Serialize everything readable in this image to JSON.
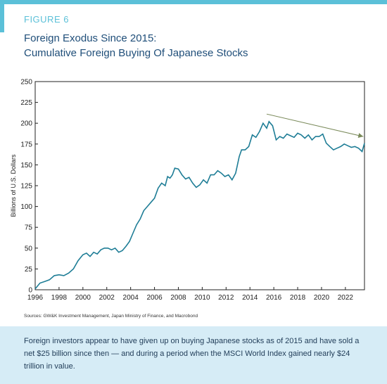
{
  "colors": {
    "accent": "#5bc0d8",
    "caption_bg": "#d6ecf6",
    "line": "#1e7d96",
    "arrow": "#7a8a5a"
  },
  "figure_label": "FIGURE 6",
  "title_line1": "Foreign Exodus Since 2015:",
  "title_line2": "Cumulative Foreign Buying Of Japanese Stocks",
  "source": "Sources: GW&K Investment Management, Japan Ministry of Finance, and Macrobond",
  "caption": "Foreign investors appear to have given up on buying Japanese stocks as of 2015 and have sold a net $25 billion since then — and during a period when the MSCI World Index gained nearly $24 trillion in value.",
  "chart_data": {
    "type": "line",
    "ylabel": "Billions of U.S. Dollars",
    "ylim": [
      0,
      250
    ],
    "xlim": [
      1996,
      2023.6
    ],
    "yticks": [
      0,
      25,
      50,
      75,
      100,
      125,
      150,
      175,
      200,
      225,
      250
    ],
    "xticks": [
      1996,
      1998,
      2000,
      2002,
      2004,
      2006,
      2008,
      2010,
      2012,
      2014,
      2016,
      2018,
      2020,
      2022
    ],
    "grid": false,
    "series": [
      {
        "x": [
          1996.0,
          1996.4,
          1996.8,
          1997.2,
          1997.6,
          1998.0,
          1998.4,
          1998.8,
          1999.2,
          1999.6,
          2000.0,
          2000.3,
          2000.6,
          2000.9,
          2001.2,
          2001.5,
          2001.8,
          2002.1,
          2002.4,
          2002.7,
          2003.0,
          2003.3,
          2003.6,
          2003.9,
          2004.2,
          2004.5,
          2004.8,
          2005.1,
          2005.4,
          2005.7,
          2006.0,
          2006.3,
          2006.6,
          2006.9,
          2007.1,
          2007.3,
          2007.5,
          2007.7,
          2008.0,
          2008.3,
          2008.6,
          2008.9,
          2009.2,
          2009.5,
          2009.8,
          2010.1,
          2010.4,
          2010.7,
          2011.0,
          2011.3,
          2011.6,
          2011.9,
          2012.2,
          2012.5,
          2012.8,
          2013.1,
          2013.3,
          2013.6,
          2013.9,
          2014.2,
          2014.5,
          2014.8,
          2015.1,
          2015.4,
          2015.6,
          2015.9,
          2016.2,
          2016.5,
          2016.8,
          2017.1,
          2017.4,
          2017.7,
          2018.0,
          2018.3,
          2018.6,
          2018.9,
          2019.2,
          2019.5,
          2019.8,
          2020.1,
          2020.4,
          2020.7,
          2021.0,
          2021.3,
          2021.6,
          2021.9,
          2022.2,
          2022.5,
          2022.8,
          2023.1,
          2023.4,
          2023.6
        ],
        "y": [
          1,
          8,
          10,
          12,
          17,
          18,
          17,
          20,
          25,
          35,
          42,
          44,
          40,
          45,
          43,
          48,
          50,
          50,
          48,
          50,
          45,
          47,
          52,
          58,
          68,
          78,
          85,
          95,
          100,
          105,
          110,
          122,
          128,
          125,
          136,
          134,
          138,
          146,
          145,
          138,
          133,
          135,
          128,
          123,
          126,
          132,
          128,
          138,
          138,
          143,
          140,
          136,
          138,
          132,
          140,
          160,
          168,
          168,
          172,
          186,
          183,
          190,
          200,
          194,
          202,
          197,
          180,
          184,
          182,
          187,
          185,
          183,
          188,
          186,
          182,
          186,
          180,
          184,
          184,
          187,
          176,
          172,
          168,
          170,
          172,
          175,
          173,
          171,
          172,
          170,
          166,
          176
        ]
      }
    ],
    "annotation_arrow": {
      "x1": 2015.4,
      "y1": 211,
      "x2": 2023.5,
      "y2": 184
    }
  }
}
